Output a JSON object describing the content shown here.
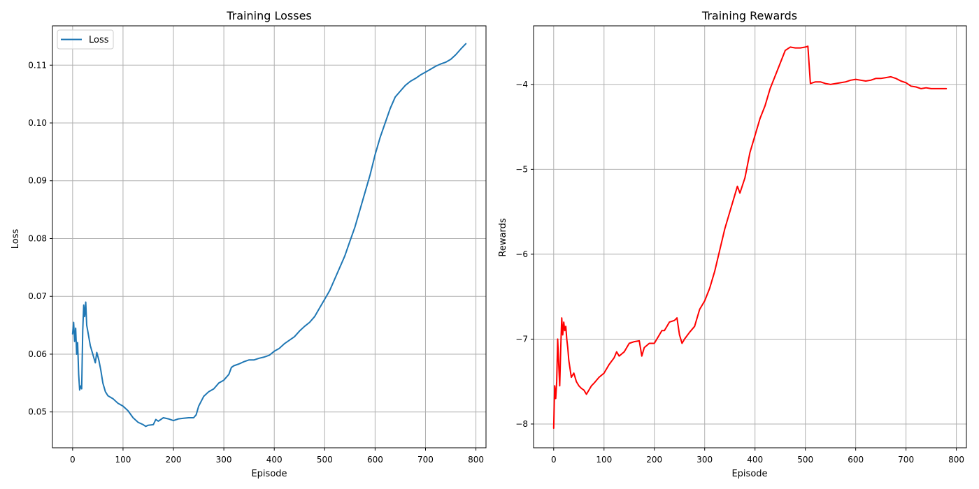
{
  "chart_data": [
    {
      "type": "line",
      "title": "Training Losses",
      "xlabel": "Episode",
      "ylabel": "Loss",
      "xlim": [
        -40,
        820
      ],
      "ylim": [
        0.0438,
        0.1168
      ],
      "xticks": [
        0,
        100,
        200,
        300,
        400,
        500,
        600,
        700,
        800
      ],
      "yticks": [
        0.05,
        0.06,
        0.07,
        0.08,
        0.09,
        0.1,
        0.11
      ],
      "ytick_labels": [
        "0.05",
        "0.06",
        "0.07",
        "0.08",
        "0.09",
        "0.10",
        "0.11"
      ],
      "grid": true,
      "legend": {
        "placement": "upper-left",
        "show": true
      },
      "series": [
        {
          "name": "Loss",
          "color": "#1f77b4",
          "x": [
            0,
            2,
            4,
            6,
            8,
            10,
            12,
            14,
            16,
            18,
            20,
            22,
            24,
            26,
            28,
            30,
            35,
            40,
            45,
            48,
            52,
            56,
            60,
            65,
            70,
            80,
            90,
            100,
            110,
            120,
            130,
            140,
            145,
            150,
            160,
            165,
            170,
            180,
            190,
            200,
            210,
            220,
            230,
            240,
            245,
            250,
            260,
            270,
            280,
            290,
            300,
            310,
            315,
            320,
            330,
            340,
            350,
            360,
            370,
            380,
            390,
            400,
            410,
            420,
            430,
            440,
            450,
            460,
            470,
            480,
            490,
            500,
            510,
            520,
            530,
            540,
            550,
            560,
            570,
            580,
            590,
            600,
            610,
            620,
            630,
            640,
            650,
            660,
            670,
            680,
            690,
            700,
            710,
            720,
            730,
            740,
            750,
            760,
            770,
            780
          ],
          "values": [
            0.0635,
            0.0655,
            0.0622,
            0.0645,
            0.06,
            0.062,
            0.0565,
            0.0538,
            0.0545,
            0.054,
            0.064,
            0.0685,
            0.0665,
            0.069,
            0.065,
            0.064,
            0.0615,
            0.06,
            0.0585,
            0.0603,
            0.059,
            0.0572,
            0.055,
            0.0535,
            0.0528,
            0.0523,
            0.0515,
            0.051,
            0.0502,
            0.049,
            0.0482,
            0.0478,
            0.0475,
            0.0477,
            0.0478,
            0.0487,
            0.0484,
            0.049,
            0.0488,
            0.0485,
            0.0488,
            0.0489,
            0.049,
            0.049,
            0.0495,
            0.051,
            0.0527,
            0.0535,
            0.054,
            0.055,
            0.0555,
            0.0565,
            0.0577,
            0.058,
            0.0583,
            0.0587,
            0.059,
            0.059,
            0.0593,
            0.0595,
            0.0598,
            0.0605,
            0.061,
            0.0618,
            0.0624,
            0.063,
            0.064,
            0.0648,
            0.0655,
            0.0665,
            0.068,
            0.0695,
            0.071,
            0.073,
            0.075,
            0.077,
            0.0795,
            0.082,
            0.085,
            0.088,
            0.091,
            0.0945,
            0.0975,
            0.1,
            0.1025,
            0.1045,
            0.1055,
            0.1065,
            0.1072,
            0.1077,
            0.1083,
            0.1088,
            0.1093,
            0.1098,
            0.1102,
            0.1105,
            0.111,
            0.1118,
            0.1128,
            0.1137
          ]
        }
      ]
    },
    {
      "type": "line",
      "title": "Training Rewards",
      "xlabel": "Episode",
      "ylabel": "Rewards",
      "xlim": [
        -40,
        820
      ],
      "ylim": [
        -8.28,
        -3.31
      ],
      "xticks": [
        0,
        100,
        200,
        300,
        400,
        500,
        600,
        700,
        800
      ],
      "yticks": [
        -8,
        -7,
        -6,
        -5,
        -4
      ],
      "ytick_labels": [
        "−8",
        "−7",
        "−6",
        "−5",
        "−4"
      ],
      "grid": true,
      "legend": {
        "show": false
      },
      "series": [
        {
          "color": "#ff0000",
          "x": [
            0,
            2,
            4,
            6,
            8,
            10,
            12,
            14,
            16,
            18,
            20,
            22,
            24,
            26,
            28,
            30,
            35,
            40,
            45,
            50,
            55,
            60,
            65,
            70,
            75,
            80,
            90,
            100,
            110,
            120,
            125,
            130,
            140,
            145,
            150,
            160,
            170,
            175,
            180,
            190,
            200,
            210,
            215,
            220,
            230,
            240,
            245,
            250,
            255,
            260,
            270,
            280,
            290,
            300,
            310,
            320,
            330,
            340,
            350,
            360,
            365,
            370,
            380,
            390,
            400,
            410,
            420,
            430,
            440,
            450,
            460,
            470,
            480,
            490,
            500,
            505,
            510,
            520,
            530,
            540,
            550,
            560,
            570,
            580,
            590,
            600,
            610,
            620,
            630,
            640,
            650,
            660,
            670,
            680,
            690,
            700,
            710,
            720,
            730,
            740,
            750,
            760,
            770,
            780
          ],
          "values": [
            -8.05,
            -7.55,
            -7.7,
            -7.5,
            -7.0,
            -7.3,
            -7.55,
            -7.1,
            -6.75,
            -6.95,
            -6.8,
            -6.9,
            -6.85,
            -7.0,
            -7.1,
            -7.25,
            -7.45,
            -7.4,
            -7.5,
            -7.55,
            -7.58,
            -7.6,
            -7.65,
            -7.6,
            -7.55,
            -7.52,
            -7.45,
            -7.4,
            -7.3,
            -7.22,
            -7.15,
            -7.2,
            -7.15,
            -7.1,
            -7.05,
            -7.03,
            -7.02,
            -7.2,
            -7.1,
            -7.05,
            -7.05,
            -6.95,
            -6.9,
            -6.9,
            -6.8,
            -6.78,
            -6.75,
            -6.95,
            -7.05,
            -7.0,
            -6.92,
            -6.85,
            -6.65,
            -6.55,
            -6.4,
            -6.2,
            -5.95,
            -5.7,
            -5.5,
            -5.3,
            -5.2,
            -5.28,
            -5.1,
            -4.8,
            -4.6,
            -4.4,
            -4.25,
            -4.05,
            -3.9,
            -3.75,
            -3.6,
            -3.56,
            -3.57,
            -3.57,
            -3.56,
            -3.55,
            -3.99,
            -3.97,
            -3.97,
            -3.99,
            -4.0,
            -3.99,
            -3.98,
            -3.97,
            -3.95,
            -3.94,
            -3.95,
            -3.96,
            -3.95,
            -3.93,
            -3.93,
            -3.92,
            -3.91,
            -3.93,
            -3.96,
            -3.98,
            -4.02,
            -4.03,
            -4.05,
            -4.04,
            -4.05,
            -4.05,
            -4.05,
            -4.05
          ]
        }
      ]
    }
  ]
}
